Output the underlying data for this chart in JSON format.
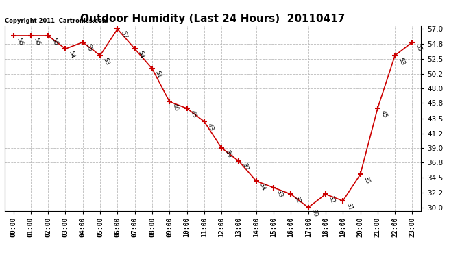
{
  "title": "Outdoor Humidity (Last 24 Hours)  20110417",
  "copyright_text": "Copyright 2011  Cartronics.com",
  "x_labels": [
    "00:00",
    "01:00",
    "02:00",
    "03:00",
    "04:00",
    "05:00",
    "06:00",
    "07:00",
    "08:00",
    "09:00",
    "10:00",
    "11:00",
    "12:00",
    "13:00",
    "14:00",
    "15:00",
    "16:00",
    "17:00",
    "18:00",
    "19:00",
    "20:00",
    "21:00",
    "22:00",
    "23:00"
  ],
  "y_values": [
    56,
    56,
    56,
    54,
    55,
    53,
    57,
    54,
    51,
    46,
    45,
    43,
    39,
    37,
    34,
    33,
    32,
    30,
    32,
    31,
    35,
    45,
    53,
    55
  ],
  "point_labels": [
    "56",
    "56",
    "56",
    "54",
    "55",
    "53",
    "57",
    "54",
    "51",
    "46",
    "45",
    "43",
    "39",
    "37",
    "34",
    "33",
    "32",
    "30",
    "32",
    "31",
    "35",
    "45",
    "53",
    "55"
  ],
  "line_color": "#cc0000",
  "marker_color": "#cc0000",
  "background_color": "#ffffff",
  "grid_color": "#bbbbbb",
  "title_fontsize": 11,
  "ylim": [
    29.5,
    57.5
  ],
  "yticks": [
    30.0,
    32.2,
    34.5,
    36.8,
    39.0,
    41.2,
    43.5,
    45.8,
    48.0,
    50.2,
    52.5,
    54.8,
    57.0
  ]
}
